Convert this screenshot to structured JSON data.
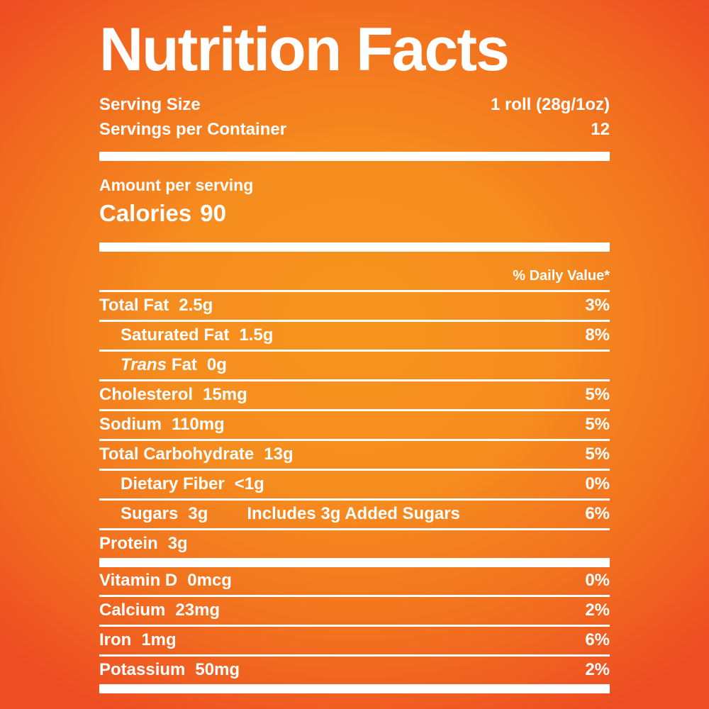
{
  "background": {
    "center_color": "#F8941E",
    "edge_color": "#EE4D23",
    "text_color": "#FFFFFF"
  },
  "label": {
    "title": "Nutrition Facts",
    "serving": {
      "size_label": "Serving Size",
      "size_value": "1 roll (28g/1oz)",
      "per_container_label": "Servings per Container",
      "per_container_value": "12"
    },
    "amount_per_serving": "Amount per serving",
    "calories_label": "Calories",
    "calories_value": "90",
    "daily_value_header": "% Daily Value*",
    "nutrients": [
      {
        "name": "Total Fat",
        "amount": "2.5g",
        "dv": "3%"
      },
      {
        "name": "Saturated Fat",
        "amount": "1.5g",
        "dv": "8%"
      },
      {
        "name_italic": "Trans",
        "name": "Fat",
        "amount": "0g",
        "dv": ""
      },
      {
        "name": "Cholesterol",
        "amount": "15mg",
        "dv": "5%"
      },
      {
        "name": "Sodium",
        "amount": "110mg",
        "dv": "5%"
      },
      {
        "name": "Total Carbohydrate",
        "amount": "13g",
        "dv": "5%"
      },
      {
        "name": "Dietary Fiber",
        "amount": "<1g",
        "dv": "0%"
      },
      {
        "name": "Sugars",
        "amount": "3g",
        "extra": "Includes 3g Added Sugars",
        "dv": "6%"
      },
      {
        "name": "Protein",
        "amount": "3g",
        "dv": ""
      }
    ],
    "vitamins": [
      {
        "name": "Vitamin D",
        "amount": "0mcg",
        "dv": "0%"
      },
      {
        "name": "Calcium",
        "amount": "23mg",
        "dv": "2%"
      },
      {
        "name": "Iron",
        "amount": "1mg",
        "dv": "6%"
      },
      {
        "name": "Potassium",
        "amount": "50mg",
        "dv": "2%"
      }
    ]
  }
}
